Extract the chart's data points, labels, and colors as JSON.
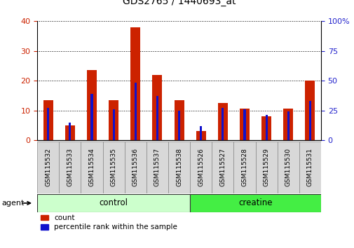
{
  "title": "GDS2765 / 1440693_at",
  "samples": [
    "GSM115532",
    "GSM115533",
    "GSM115534",
    "GSM115535",
    "GSM115536",
    "GSM115537",
    "GSM115538",
    "GSM115526",
    "GSM115527",
    "GSM115528",
    "GSM115529",
    "GSM115530",
    "GSM115531"
  ],
  "count_values": [
    13.5,
    5.0,
    23.5,
    13.5,
    38.0,
    22.0,
    13.5,
    3.0,
    12.5,
    10.5,
    8.0,
    10.5,
    20.0
  ],
  "percentile_values": [
    27,
    15,
    39,
    26,
    48,
    37,
    25,
    12,
    27,
    26,
    21,
    24,
    33
  ],
  "groups": [
    {
      "label": "control",
      "start": 0,
      "end": 7,
      "color": "#ccffcc"
    },
    {
      "label": "creatine",
      "start": 7,
      "end": 13,
      "color": "#44ee44"
    }
  ],
  "left_ylim": [
    0,
    40
  ],
  "right_ylim": [
    0,
    100
  ],
  "left_yticks": [
    0,
    10,
    20,
    30,
    40
  ],
  "right_yticks": [
    0,
    25,
    50,
    75,
    100
  ],
  "right_yticklabels": [
    "0",
    "25",
    "50",
    "75",
    "100%"
  ],
  "bar_color_red": "#cc2200",
  "bar_color_blue": "#1111cc",
  "tick_label_color_left": "#cc2200",
  "tick_label_color_right": "#2222cc",
  "red_bar_width": 0.45,
  "blue_bar_width": 0.1,
  "agent_label": "agent"
}
